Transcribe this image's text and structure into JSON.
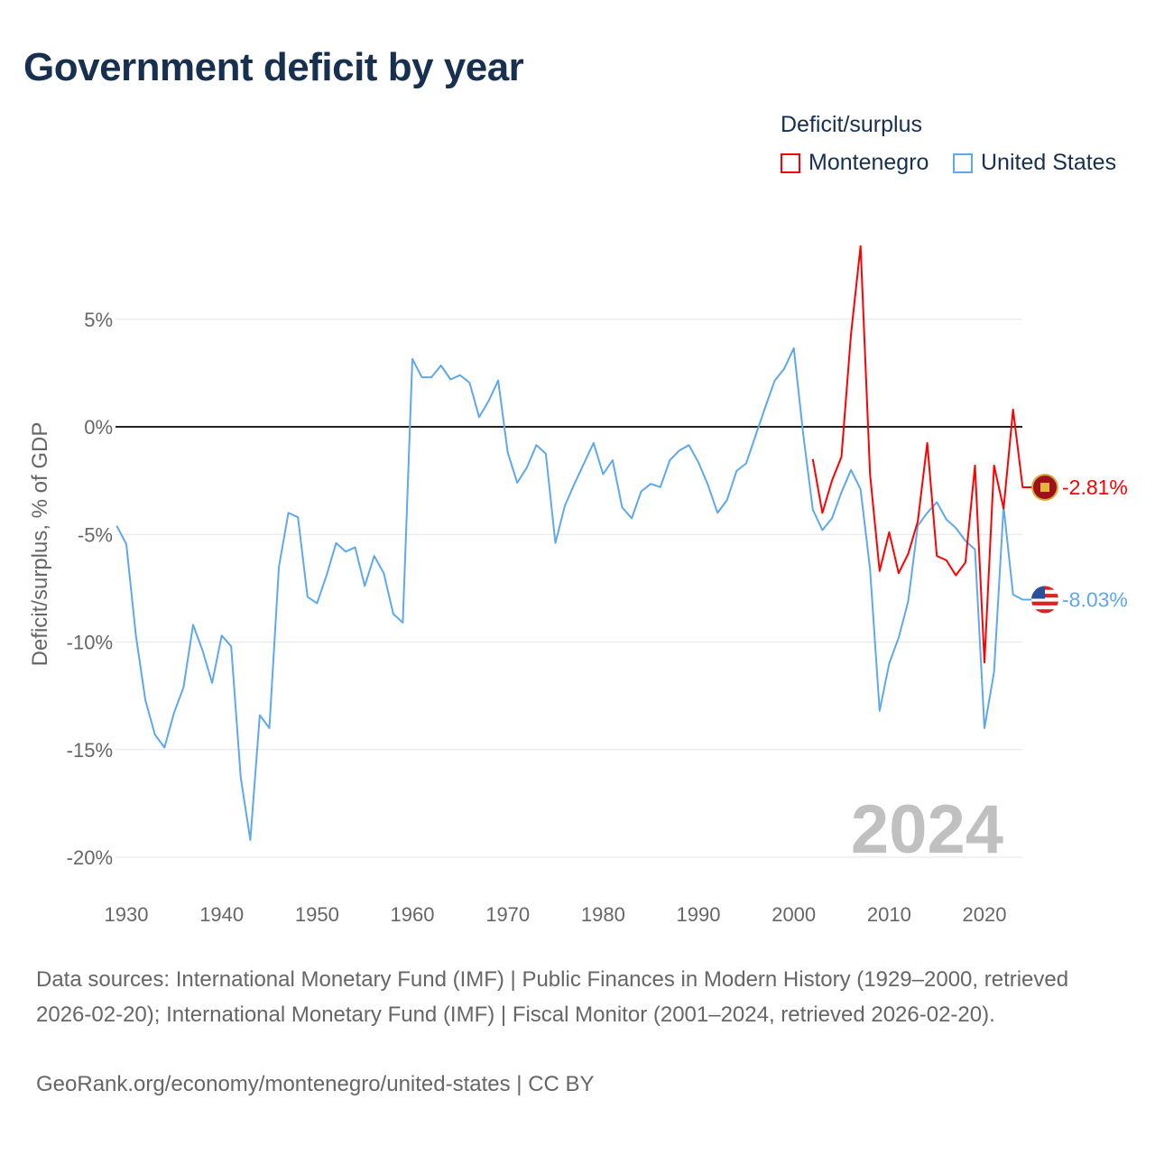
{
  "title": "Government deficit by year",
  "colors": {
    "montenegro": "#ff0000",
    "united_states": "#5ea8ee",
    "zero_line": "#222222",
    "grid": "#e6e6e6",
    "text": "#17304f",
    "axis_text": "#666666",
    "year_watermark": "#c0c0c0"
  },
  "chart_data": {
    "type": "line",
    "title": "Government deficit by year",
    "xlabel": "",
    "ylabel": "Deficit/surplus, % of GDP",
    "xlim": [
      1929,
      2024
    ],
    "ylim": [
      -20,
      8.5
    ],
    "x_ticks": [
      1930,
      1940,
      1950,
      1960,
      1970,
      1980,
      1990,
      2000,
      2010,
      2020
    ],
    "y_ticks": [
      5,
      0,
      -5,
      -10,
      -15,
      -20
    ],
    "y_tick_labels": [
      "5%",
      "0%",
      "-5%",
      "-10%",
      "-15%",
      "-20%"
    ],
    "grid": true,
    "legend_title": "Deficit/surplus",
    "legend_position": "top-right",
    "year_label": "2024",
    "series": [
      {
        "name": "Montenegro",
        "color": "#ff0000",
        "start_year": 2002,
        "values": [
          -1.5,
          -4.0,
          -2.5,
          -1.4,
          4.3,
          8.4,
          -2.2,
          -6.7,
          -4.9,
          -6.8,
          -5.9,
          -4.4,
          -0.75,
          -6.0,
          -6.2,
          -6.9,
          -6.3,
          -1.8,
          -10.95,
          -1.8,
          -3.8,
          0.8,
          -2.81
        ],
        "end_label": "-2.81%"
      },
      {
        "name": "United States",
        "color": "#5ea8ee",
        "start_year": 1929,
        "values": [
          -4.6,
          -5.45,
          -9.7,
          -12.7,
          -14.3,
          -14.9,
          -13.3,
          -12.1,
          -9.2,
          -10.4,
          -11.9,
          -9.7,
          -10.2,
          -16.3,
          -19.2,
          -13.4,
          -14.0,
          -6.5,
          -4.0,
          -4.2,
          -7.9,
          -8.2,
          -6.9,
          -5.4,
          -5.8,
          -5.6,
          -7.4,
          -6.0,
          -6.8,
          -8.7,
          -9.1,
          3.15,
          2.3,
          2.3,
          2.85,
          2.2,
          2.4,
          2.05,
          0.45,
          1.2,
          2.15,
          -1.2,
          -2.6,
          -1.9,
          -0.85,
          -1.25,
          -5.4,
          -3.65,
          -2.65,
          -1.7,
          -0.75,
          -2.2,
          -1.55,
          -3.75,
          -4.25,
          -3.0,
          -2.65,
          -2.8,
          -1.55,
          -1.1,
          -0.85,
          -1.65,
          -2.7,
          -4.0,
          -3.4,
          -2.05,
          -1.7,
          -0.4,
          0.9,
          2.15,
          2.7,
          3.65,
          -0.4,
          -3.85,
          -4.8,
          -4.25,
          -3.05,
          -2.0,
          -2.9,
          -6.6,
          -13.2,
          -11.0,
          -9.8,
          -8.1,
          -4.6,
          -4.0,
          -3.5,
          -4.3,
          -4.7,
          -5.3,
          -5.7,
          -14.0,
          -11.4,
          -3.7,
          -7.8,
          -8.03
        ],
        "end_label": "-8.03%"
      }
    ]
  },
  "footer": {
    "sources": "Data sources: International Monetary Fund (IMF) | Public Finances in Modern History (1929–2000, retrieved 2026-02-20); International Monetary Fund (IMF) | Fiscal Monitor (2001–2024, retrieved 2026-02-20).",
    "credit": "GeoRank.org/economy/montenegro/united-states | CC BY"
  },
  "icons": {
    "montenegro_flag": "montenegro-flag-icon",
    "us_flag": "us-flag-icon"
  }
}
